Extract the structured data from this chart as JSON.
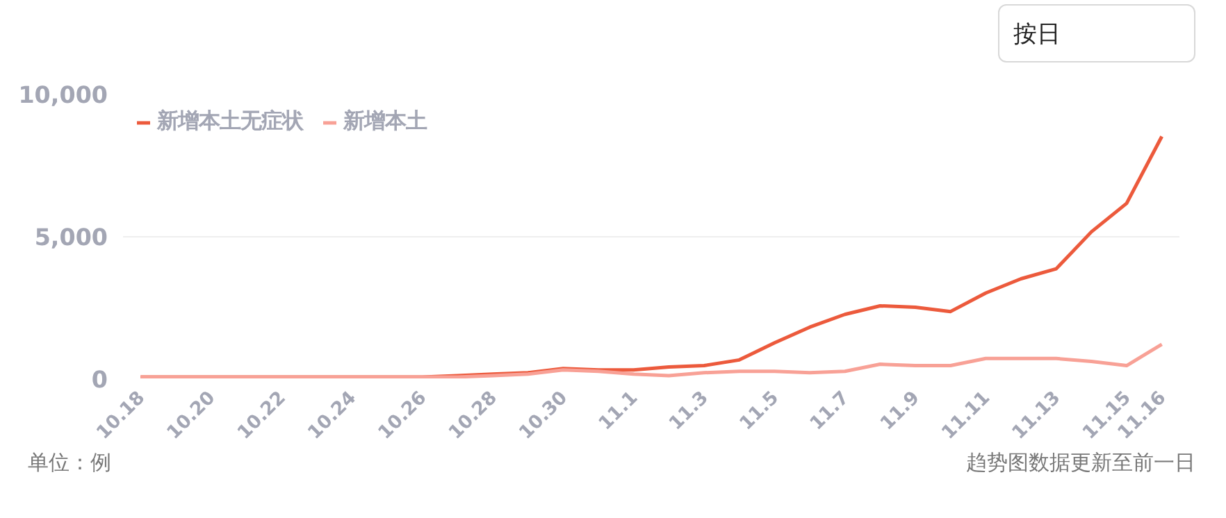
{
  "chart_data": {
    "type": "line",
    "categories": [
      "10.18",
      null,
      "10.20",
      null,
      "10.22",
      null,
      "10.24",
      null,
      "10.26",
      null,
      "10.28",
      null,
      "10.30",
      null,
      "11.1",
      null,
      "11.3",
      null,
      "11.5",
      null,
      "11.7",
      null,
      "11.9",
      null,
      "11.11",
      null,
      "11.13",
      null,
      "11.15",
      "11.16"
    ],
    "series": [
      {
        "name": "新增本土无症状",
        "color": "#ec5a3c",
        "values": [
          50,
          50,
          50,
          50,
          50,
          50,
          50,
          50,
          50,
          100,
          150,
          200,
          350,
          300,
          300,
          400,
          450,
          650,
          1250,
          1800,
          2250,
          2550,
          2500,
          2350,
          3000,
          3500,
          3850,
          5150,
          6150,
          8500
        ]
      },
      {
        "name": "新增本土",
        "color": "#f8a196",
        "values": [
          50,
          50,
          50,
          50,
          50,
          50,
          50,
          50,
          50,
          50,
          100,
          150,
          300,
          250,
          150,
          100,
          200,
          250,
          250,
          200,
          250,
          500,
          450,
          450,
          700,
          700,
          700,
          600,
          450,
          1200
        ]
      }
    ],
    "ylim": [
      0,
      10000
    ],
    "yticks": [
      0,
      {
        "value": 5000,
        "label": "5,000"
      },
      {
        "value": 10000,
        "label": "10,000"
      }
    ],
    "grid": "y",
    "legend": "top left",
    "marker": "none",
    "line_style": "solid",
    "annotations": [
      "按日",
      "单位：例",
      "趋势图数据更新至前一日"
    ]
  }
}
